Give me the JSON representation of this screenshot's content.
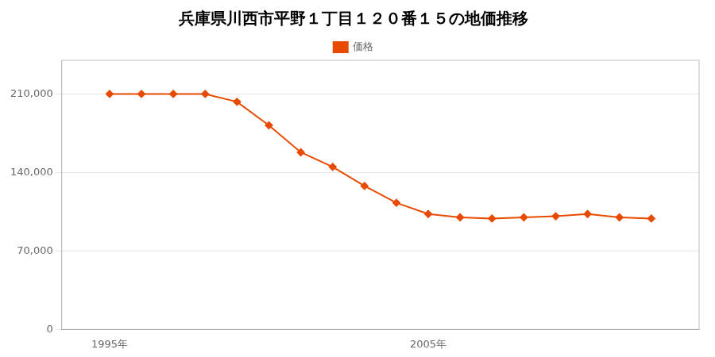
{
  "chart_data": {
    "type": "line",
    "title": "兵庫県川西市平野１丁目１２０番１５の地価推移",
    "x": [
      1995,
      1996,
      1997,
      1998,
      1999,
      2000,
      2001,
      2002,
      2003,
      2004,
      2005,
      2006,
      2007,
      2008,
      2009,
      2010,
      2011,
      2012
    ],
    "series": [
      {
        "name": "価格",
        "color": "#e84a00",
        "marker": "diamond",
        "values": [
          210000,
          210000,
          210000,
          210000,
          203000,
          182000,
          158000,
          145000,
          128000,
          113000,
          103000,
          100000,
          99000,
          100000,
          101000,
          103000,
          100000,
          99000
        ]
      }
    ],
    "xlim": [
      1993.5,
      2013.5
    ],
    "xticks": [
      {
        "value": 1995,
        "label": "1995年"
      },
      {
        "value": 2005,
        "label": "2005年"
      }
    ],
    "ylim": [
      0,
      240000
    ],
    "yticks": [
      0,
      {
        "value": 70000,
        "label": "70,000"
      },
      {
        "value": 140000,
        "label": "140,000"
      },
      {
        "value": 210000,
        "label": "210,000"
      }
    ],
    "grid": "y",
    "legend": "top"
  }
}
